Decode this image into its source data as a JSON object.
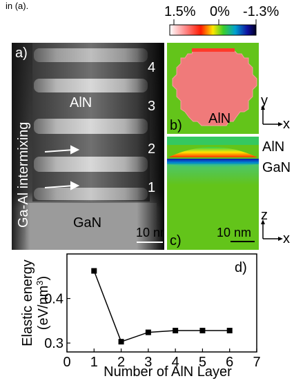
{
  "caption": "in (a).",
  "colorbar": {
    "labels": [
      "1.5%",
      "0%",
      "-1.3%"
    ],
    "colors": [
      "#ffffff",
      "#ff6b6b",
      "#ff2a00",
      "#ffe600",
      "#3ccf2a",
      "#009ad0",
      "#1010a0",
      "#000022"
    ]
  },
  "panel_a": {
    "tag": "a)",
    "layer_numbers": [
      "4",
      "3",
      "2",
      "1"
    ],
    "aln_label": "AlN",
    "gan_label": "GaN",
    "side_label": "Ga-Al intermixing",
    "scalebar": "10 nm"
  },
  "panel_b": {
    "tag": "b)",
    "aln_label": "AlN",
    "axis_y": "y",
    "axis_x": "x",
    "colors": {
      "background": "#63c41a",
      "dot": "#f07a7a"
    }
  },
  "panel_c": {
    "tag": "c)",
    "right_aln": "AlN",
    "right_gan": "GaN",
    "scalebar": "10 nm",
    "axis_z": "z",
    "axis_x": "x"
  },
  "chart_data": {
    "type": "line",
    "tag": "d)",
    "xlabel": "Number of AlN Layer",
    "ylabel_line1": "Elastic energy",
    "ylabel_line2": "(eV/nm",
    "ylabel_sup": "3",
    "ylabel_end": ")",
    "x": [
      1,
      2,
      3,
      4,
      5,
      6
    ],
    "y": [
      0.462,
      0.303,
      0.324,
      0.328,
      0.328,
      0.328
    ],
    "xlim": [
      0,
      7
    ],
    "ylim": [
      0.28,
      0.5
    ],
    "xticks": [
      "0",
      "1",
      "2",
      "3",
      "4",
      "5",
      "6",
      "7"
    ],
    "yticks": [
      "0.3",
      "0.4"
    ],
    "ytick_values": [
      0.3,
      0.4
    ]
  }
}
